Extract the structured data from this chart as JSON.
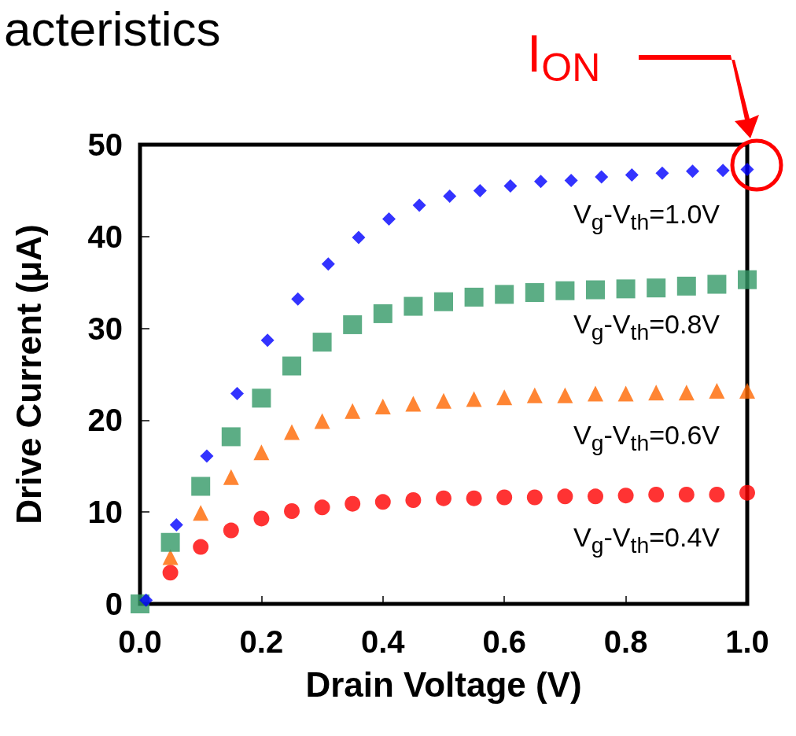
{
  "chart_data": {
    "type": "scatter",
    "title": "acteristics",
    "xlabel": "Drain Voltage (V)",
    "ylabel": "Drive Current (μA)",
    "xlim": [
      0,
      1.0
    ],
    "xticks": [
      {
        "value": 0,
        "label": "0.0"
      },
      {
        "value": 0.2,
        "label": "0.2"
      },
      {
        "value": 0.4,
        "label": "0.4"
      },
      {
        "value": 0.6,
        "label": "0.6"
      },
      {
        "value": 0.8,
        "label": "0.8"
      },
      {
        "value": 1.0,
        "label": "1.0"
      }
    ],
    "ylim": [
      0,
      50
    ],
    "yticks": [
      0,
      10,
      20,
      30,
      40,
      50
    ],
    "grid": false,
    "legend": false,
    "annotations": [
      "I$_{ON}$"
    ],
    "series": [
      {
        "name": "V$_{g}$-V$_{th}$=1.0V",
        "color": "#0000ff",
        "marker": "diamond",
        "x": [
          0.01,
          0.06,
          0.11,
          0.16,
          0.21,
          0.26,
          0.31,
          0.36,
          0.41,
          0.46,
          0.51,
          0.56,
          0.61,
          0.66,
          0.71,
          0.76,
          0.81,
          0.86,
          0.91,
          0.96,
          1.0
        ],
        "values": [
          0.4,
          8.6,
          16.1,
          22.9,
          28.7,
          33.2,
          37.0,
          39.9,
          41.9,
          43.4,
          44.4,
          45.0,
          45.5,
          46.0,
          46.1,
          46.5,
          46.7,
          46.9,
          47.1,
          47.2,
          47.3
        ]
      },
      {
        "name": "V$_{g}$-V$_{th}$=0.8V",
        "color": "#339966",
        "marker": "square",
        "x": [
          0,
          0.05,
          0.1,
          0.15,
          0.2,
          0.25,
          0.3,
          0.35,
          0.4,
          0.45,
          0.5,
          0.55,
          0.6,
          0.65,
          0.7,
          0.75,
          0.8,
          0.85,
          0.9,
          0.95,
          1.0
        ],
        "values": [
          0,
          6.7,
          12.8,
          18.2,
          22.4,
          25.9,
          28.5,
          30.4,
          31.6,
          32.4,
          32.9,
          33.4,
          33.7,
          33.9,
          34.1,
          34.2,
          34.3,
          34.4,
          34.6,
          34.8,
          35.3
        ]
      },
      {
        "name": "V$_{g}$-V$_{th}$=0.6V",
        "color": "#ff6600",
        "marker": "triangle",
        "x": [
          0.05,
          0.1,
          0.15,
          0.2,
          0.25,
          0.3,
          0.35,
          0.4,
          0.45,
          0.5,
          0.55,
          0.6,
          0.65,
          0.7,
          0.75,
          0.8,
          0.85,
          0.9,
          0.95,
          1.0
        ],
        "values": [
          5.1,
          9.9,
          13.8,
          16.5,
          18.7,
          19.9,
          21.0,
          21.5,
          21.8,
          22.1,
          22.3,
          22.5,
          22.7,
          22.7,
          22.9,
          22.9,
          23.0,
          23.0,
          23.2,
          23.2
        ]
      },
      {
        "name": "V$_{g}$-V$_{th}$=0.4V",
        "color": "#ff0000",
        "marker": "circle",
        "x": [
          0.05,
          0.1,
          0.15,
          0.2,
          0.25,
          0.3,
          0.35,
          0.4,
          0.45,
          0.5,
          0.55,
          0.6,
          0.65,
          0.7,
          0.75,
          0.8,
          0.85,
          0.9,
          0.95,
          1.0
        ],
        "values": [
          3.4,
          6.2,
          8.0,
          9.3,
          10.1,
          10.5,
          10.9,
          11.1,
          11.3,
          11.5,
          11.5,
          11.6,
          11.6,
          11.7,
          11.7,
          11.8,
          11.9,
          11.9,
          11.9,
          12.1
        ]
      }
    ]
  }
}
